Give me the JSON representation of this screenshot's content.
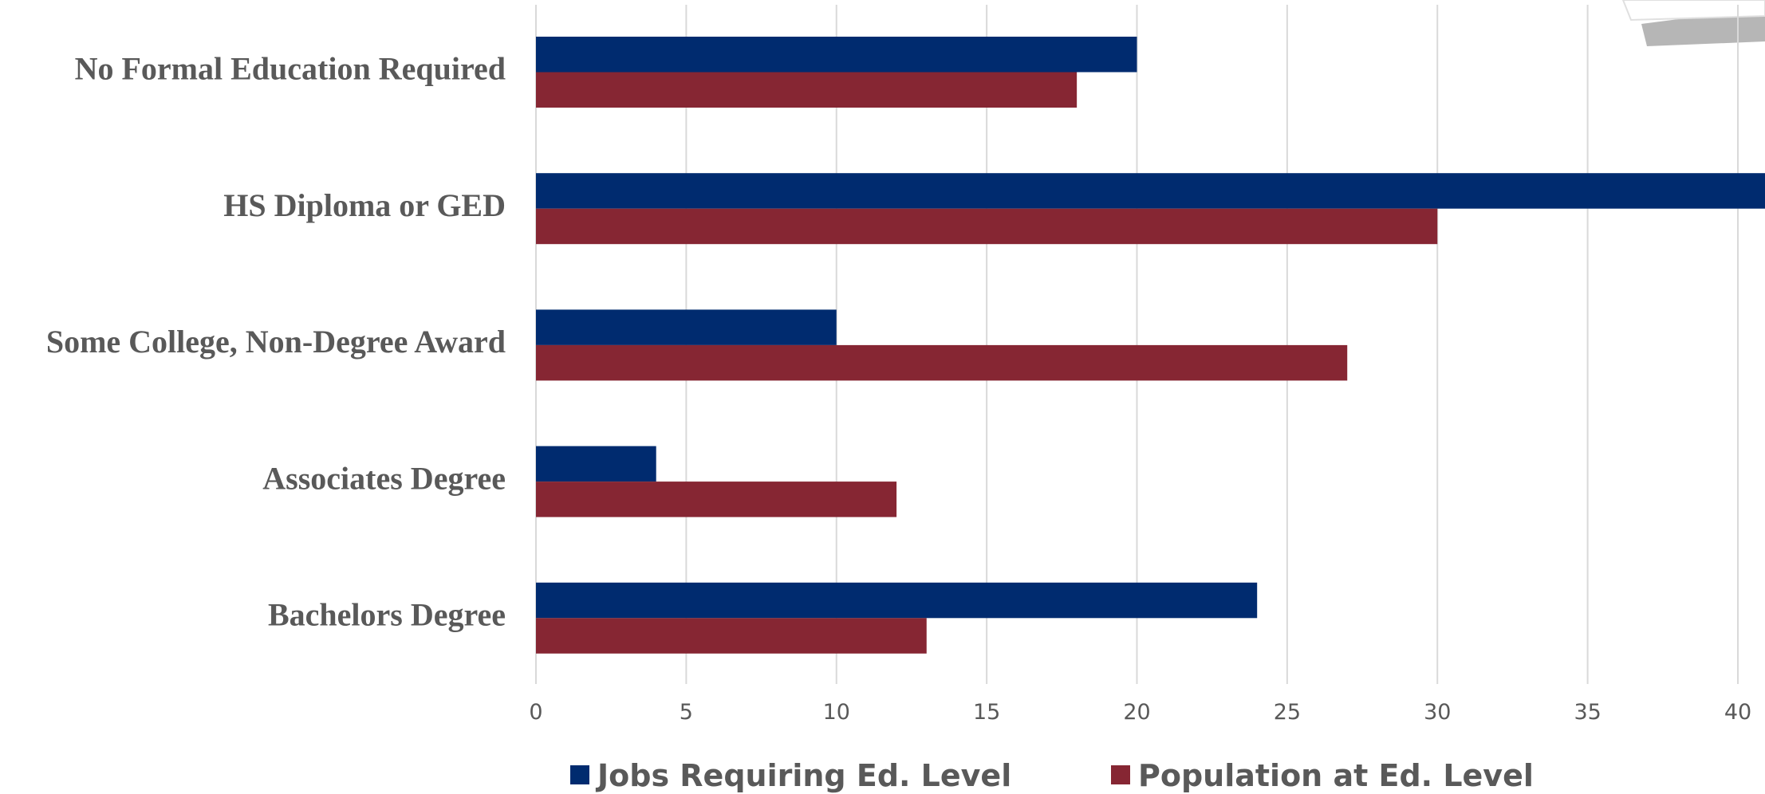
{
  "chart_data": {
    "type": "bar",
    "orientation": "horizontal",
    "categories": [
      "No Formal Education Required",
      "HS Diploma or GED",
      "Some College, Non-Degree Award",
      "Associates Degree",
      "Bachelors Degree"
    ],
    "series": [
      {
        "name": "Jobs Requiring Ed. Level",
        "color": "#002b6f",
        "values": [
          20,
          41,
          10,
          4,
          24
        ]
      },
      {
        "name": "Population at Ed. Level",
        "color": "#862633",
        "values": [
          18,
          30,
          27,
          12,
          13
        ]
      }
    ],
    "xlim": [
      0,
      40
    ],
    "x_ticks": [
      0,
      5,
      10,
      15,
      20,
      25,
      30,
      35,
      40
    ],
    "x_tick_labels": [
      "0",
      "5",
      "10",
      "15",
      "20",
      "25",
      "30",
      "35",
      "40"
    ],
    "grid": true,
    "legend_position": "bottom",
    "title": "",
    "xlabel": "",
    "ylabel": ""
  }
}
